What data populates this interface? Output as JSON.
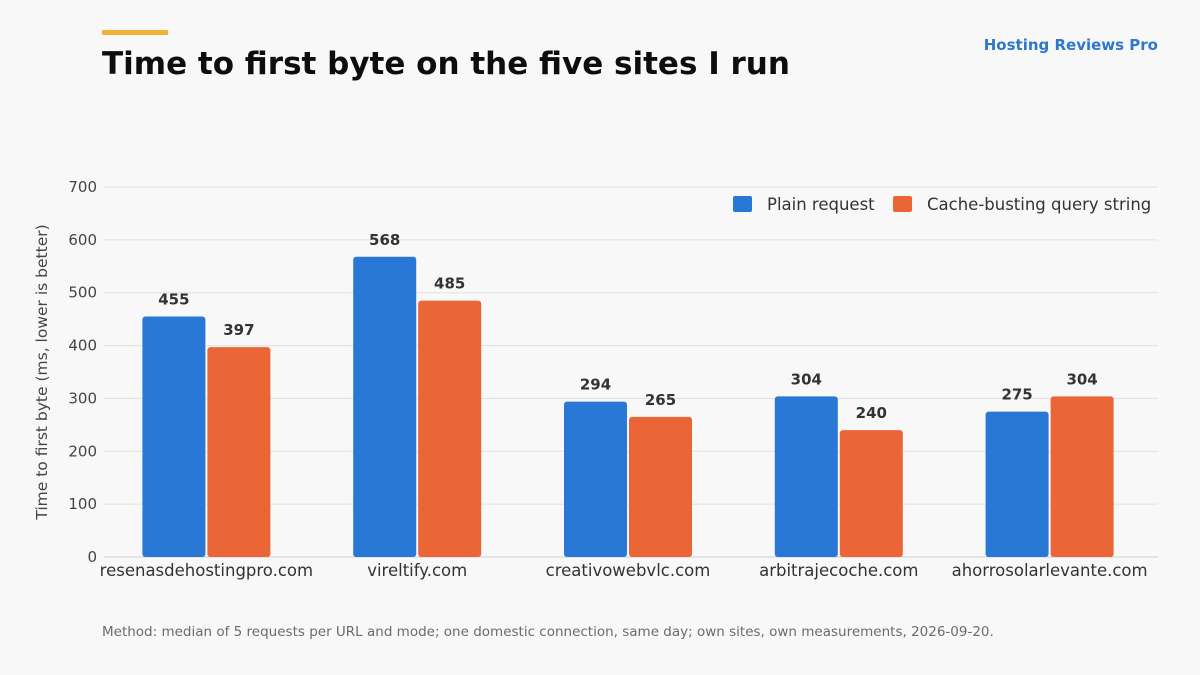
{
  "header": {
    "title": "Time to first byte on the five sites I run",
    "brand": "Hosting Reviews Pro",
    "accent_color": "#f5b133",
    "brand_color": "#2f77cc"
  },
  "footnote": "Method: median of 5 requests per URL and mode; one domestic connection, same day; own sites, own measurements, 2026-09-20.",
  "chart_data": {
    "type": "bar",
    "title": "Time to first byte on the five sites I run",
    "xlabel": "",
    "ylabel": "Time to first byte (ms, lower is better)",
    "ylim": [
      0,
      700
    ],
    "yticks": [
      0,
      100,
      200,
      300,
      400,
      500,
      600,
      700
    ],
    "grid": true,
    "legend_position": "top-right",
    "categories": [
      "resenasdehostingpro.com",
      "vireltify.com",
      "creativowebvlc.com",
      "arbitrajecoche.com",
      "ahorrosolarlevante.com"
    ],
    "series": [
      {
        "name": "Plain request",
        "color": "#2a78d6",
        "values": [
          455,
          568,
          294,
          304,
          275
        ]
      },
      {
        "name": "Cache-busting query string",
        "color": "#ea6637",
        "values": [
          397,
          485,
          265,
          240,
          304
        ]
      }
    ],
    "data_labels": true
  }
}
